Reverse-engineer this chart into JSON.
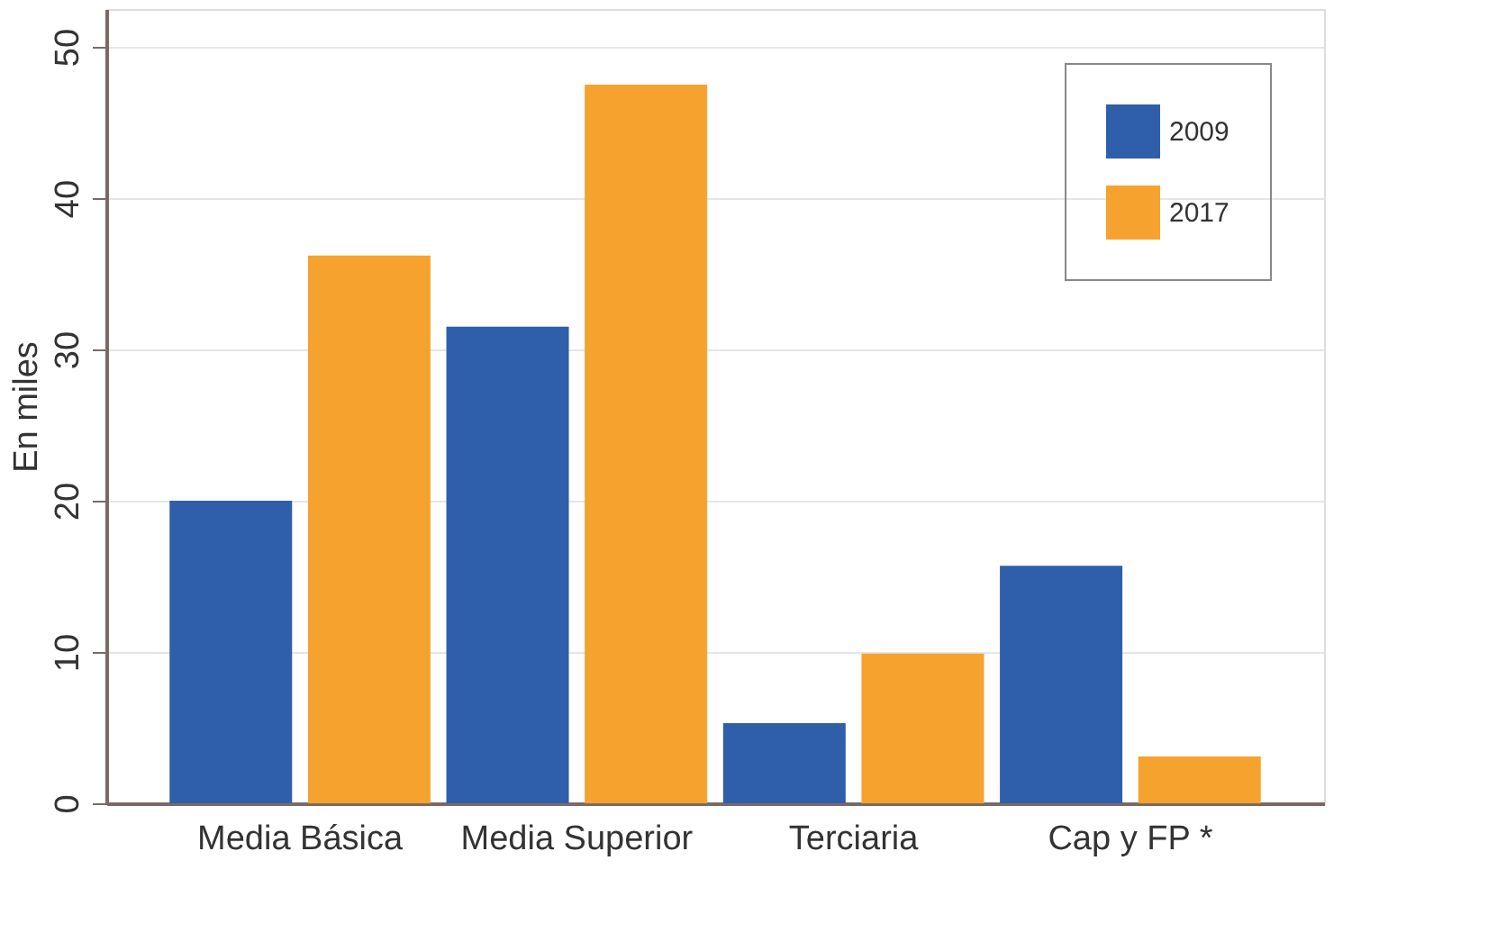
{
  "chart_data": {
    "type": "bar",
    "ylabel": "En miles",
    "categories": [
      "Media Básica",
      "Media Superior",
      "Terciaria",
      "Cap y FP *"
    ],
    "series": [
      {
        "name": "2009",
        "color": "#2f5faa",
        "values": [
          20,
          31.5,
          5.3,
          15.7
        ]
      },
      {
        "name": "2017",
        "color": "#f6a22e",
        "values": [
          36.2,
          47.5,
          9.9,
          3.1
        ]
      }
    ],
    "ylim": [
      0,
      52.5
    ],
    "yticks": [
      0,
      10,
      20,
      30,
      40,
      50
    ],
    "grid": "y",
    "legend": "top right"
  }
}
